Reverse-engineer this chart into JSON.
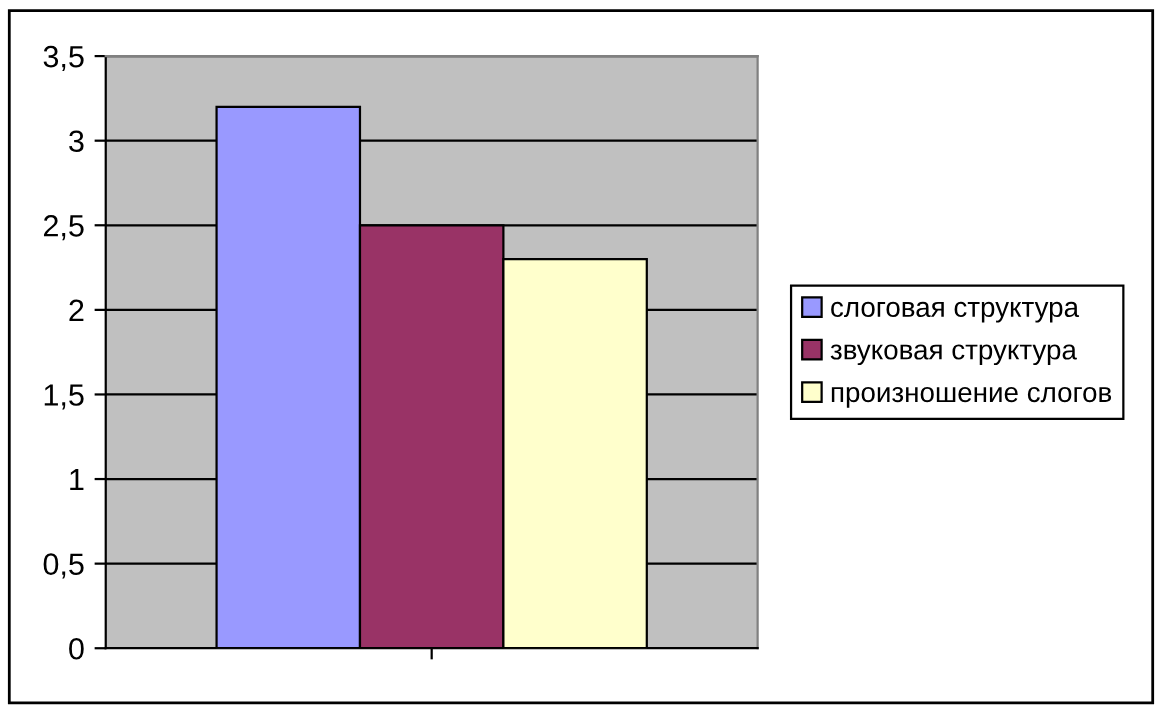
{
  "chart_data": {
    "type": "bar",
    "categories": [
      null
    ],
    "series": [
      {
        "name": "слоговая структура",
        "color": "#9999ff",
        "values": [
          3.2
        ]
      },
      {
        "name": "звуковая структура",
        "color": "#993366",
        "values": [
          2.5
        ]
      },
      {
        "name": "произношение слогов",
        "color": "#ffffcc",
        "values": [
          2.3
        ]
      }
    ],
    "ylim": [
      0,
      3.5
    ],
    "yticks": [
      0,
      {
        "value": 0.5,
        "label": "0,5"
      },
      1,
      {
        "value": 1.5,
        "label": "1,5"
      },
      2,
      {
        "value": 2.5,
        "label": "2,5"
      },
      3,
      {
        "value": 3.5,
        "label": "3,5"
      }
    ],
    "grid": "y",
    "legend": "right"
  }
}
